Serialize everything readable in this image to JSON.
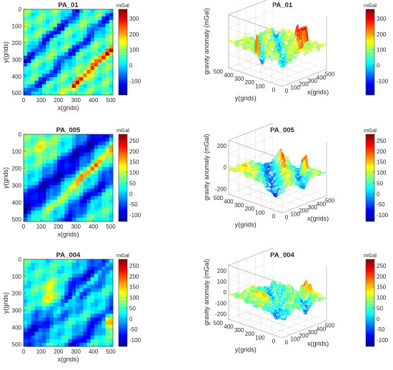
{
  "colormap": [
    "#00008f",
    "#0000ff",
    "#0080ff",
    "#00ffff",
    "#80ff80",
    "#ffff00",
    "#ff8000",
    "#ff0000",
    "#800000"
  ],
  "chart_data": [
    {
      "type": "heatmap",
      "title": "PA_01",
      "xlabel": "x(grids)",
      "ylabel": "y(grids)",
      "xticks": [
        "0",
        "100",
        "200",
        "300",
        "400",
        "500"
      ],
      "yticks": [
        "0",
        "100",
        "200",
        "300",
        "400",
        "500"
      ],
      "xlim": [
        0,
        512
      ],
      "ylim": [
        0,
        512
      ],
      "colorbar": {
        "unit": "mGal",
        "ticks": [
          "300",
          "200",
          "100",
          "0",
          "-100"
        ],
        "clim": [
          -190,
          360
        ]
      }
    },
    {
      "type": "surface",
      "title": "PA_01",
      "zlabel": "gravity anomaly (mGal)",
      "ylabel": "y(grids)",
      "xlabel": "x(grids)",
      "zticks": [],
      "yticks": [
        "500",
        "400",
        "300",
        "200",
        "100",
        "0"
      ],
      "xticks": [
        "0",
        "100",
        "200",
        "300",
        "400",
        "500"
      ],
      "colorbar": {
        "unit": "mGal",
        "ticks": [
          "300",
          "200",
          "100",
          "0",
          "-100"
        ],
        "clim": [
          -190,
          360
        ]
      }
    },
    {
      "type": "heatmap",
      "title": "PA_005",
      "xlabel": "x(grids)",
      "ylabel": "y(grids)",
      "xticks": [
        "0",
        "100",
        "200",
        "300",
        "400",
        "500"
      ],
      "yticks": [
        "0",
        "100",
        "200",
        "300",
        "400",
        "500"
      ],
      "xlim": [
        0,
        512
      ],
      "ylim": [
        0,
        512
      ],
      "colorbar": {
        "unit": "mGal",
        "ticks": [
          "250",
          "200",
          "150",
          "100",
          "50",
          "0",
          "-50",
          "-100"
        ],
        "clim": [
          -130,
          280
        ]
      }
    },
    {
      "type": "surface",
      "title": "PA_005",
      "zlabel": "gravity anomaly (mGal)",
      "ylabel": "y(grids)",
      "xlabel": "x(grids)",
      "zticks": [
        "200",
        "0",
        "-200"
      ],
      "yticks": [
        "500",
        "400",
        "300",
        "200",
        "100",
        "0"
      ],
      "xticks": [
        "0",
        "100",
        "200",
        "300",
        "400",
        "500"
      ],
      "colorbar": {
        "unit": "mGal",
        "ticks": [
          "250",
          "200",
          "150",
          "100",
          "50",
          "0",
          "-50",
          "-100"
        ],
        "clim": [
          -130,
          280
        ]
      }
    },
    {
      "type": "heatmap",
      "title": "PA_004",
      "xlabel": "x(grids)",
      "ylabel": "y(grids)",
      "xticks": [
        "0",
        "100",
        "200",
        "300",
        "400",
        "500"
      ],
      "yticks": [
        "0",
        "100",
        "200",
        "300",
        "400",
        "500"
      ],
      "xlim": [
        0,
        512
      ],
      "ylim": [
        0,
        512
      ],
      "colorbar": {
        "unit": "mGal",
        "ticks": [
          "250",
          "200",
          "150",
          "100",
          "50",
          "0",
          "-50",
          "-100"
        ],
        "clim": [
          -130,
          280
        ]
      }
    },
    {
      "type": "surface",
      "title": "PA_004",
      "zlabel": "gravity anomaly (mGal)",
      "ylabel": "y(grids)",
      "xlabel": "x(grids)",
      "zticks": [
        "200",
        "100",
        "0",
        "-100",
        "-200"
      ],
      "yticks": [
        "500",
        "400",
        "300",
        "200",
        "100",
        "0"
      ],
      "xticks": [
        "0",
        "100",
        "200",
        "300",
        "400",
        "500"
      ],
      "colorbar": {
        "unit": "mGal",
        "ticks": [
          "250",
          "200",
          "150",
          "100",
          "50",
          "0",
          "-50",
          "-100"
        ],
        "clim": [
          -130,
          280
        ]
      }
    }
  ]
}
